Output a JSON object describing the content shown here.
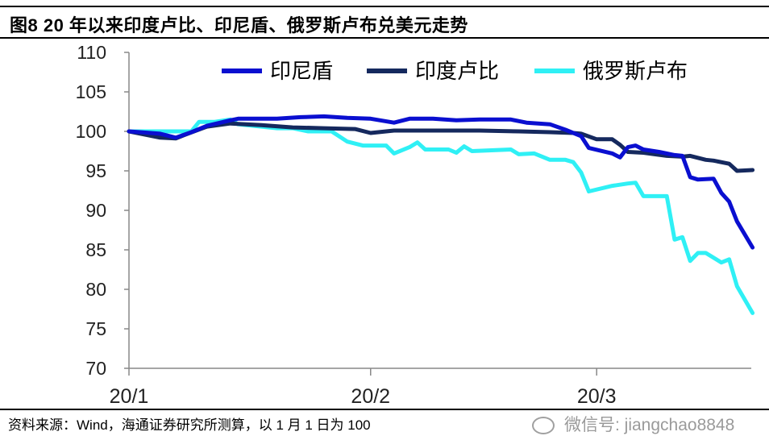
{
  "title": "图8  20 年以来印度卢比、印尼盾、俄罗斯卢布兑美元走势",
  "footer": "资料来源：Wind，海通证券研究所测算，以 1 月 1 日为 100",
  "watermark": "微信号: jiangchao8848",
  "chart_data": {
    "type": "line",
    "title": "",
    "xlabel": "",
    "ylabel": "",
    "ylim": [
      70,
      110
    ],
    "yticks": [
      70,
      75,
      80,
      85,
      90,
      95,
      100,
      105,
      110
    ],
    "xlim": [
      "2020-01-01",
      "2020-03-21"
    ],
    "xticks": [
      {
        "date": "2020-01-01",
        "label": "20/1"
      },
      {
        "date": "2020-02-01",
        "label": "20/2"
      },
      {
        "date": "2020-03-01",
        "label": "20/3"
      }
    ],
    "grid": false,
    "legend_position": "top",
    "series": [
      {
        "name": "印尼盾",
        "color": "#0a0fd0",
        "points": [
          [
            "2020-01-01",
            100
          ],
          [
            "2020-01-05",
            99.7
          ],
          [
            "2020-01-07",
            99.2
          ],
          [
            "2020-01-09",
            99.9
          ],
          [
            "2020-01-11",
            100.7
          ],
          [
            "2020-01-14",
            101.4
          ],
          [
            "2020-01-15",
            101.6
          ],
          [
            "2020-01-20",
            101.6
          ],
          [
            "2020-01-23",
            101.8
          ],
          [
            "2020-01-26",
            101.9
          ],
          [
            "2020-01-29",
            101.7
          ],
          [
            "2020-02-01",
            101.6
          ],
          [
            "2020-02-04",
            101.1
          ],
          [
            "2020-02-06",
            101.6
          ],
          [
            "2020-02-09",
            101.6
          ],
          [
            "2020-02-12",
            101.4
          ],
          [
            "2020-02-15",
            101.5
          ],
          [
            "2020-02-19",
            101.5
          ],
          [
            "2020-02-21",
            101.1
          ],
          [
            "2020-02-24",
            100.9
          ],
          [
            "2020-02-26",
            100.2
          ],
          [
            "2020-02-28",
            99.4
          ],
          [
            "2020-02-29",
            97.9
          ],
          [
            "2020-03-03",
            97.2
          ],
          [
            "2020-03-04",
            96.7
          ],
          [
            "2020-03-05",
            98.0
          ],
          [
            "2020-03-06",
            98.2
          ],
          [
            "2020-03-07",
            97.7
          ],
          [
            "2020-03-09",
            97.4
          ],
          [
            "2020-03-11",
            97.0
          ],
          [
            "2020-03-12",
            96.9
          ],
          [
            "2020-03-13",
            94.2
          ],
          [
            "2020-03-14",
            93.9
          ],
          [
            "2020-03-16",
            94.0
          ],
          [
            "2020-03-17",
            92.2
          ],
          [
            "2020-03-18",
            91.1
          ],
          [
            "2020-03-19",
            88.6
          ],
          [
            "2020-03-21",
            85.3
          ]
        ]
      },
      {
        "name": "印度卢比",
        "color": "#15295e",
        "points": [
          [
            "2020-01-01",
            100
          ],
          [
            "2020-01-05",
            99.2
          ],
          [
            "2020-01-07",
            99.1
          ],
          [
            "2020-01-08",
            99.5
          ],
          [
            "2020-01-11",
            100.6
          ],
          [
            "2020-01-14",
            101.0
          ],
          [
            "2020-01-18",
            100.8
          ],
          [
            "2020-01-22",
            100.5
          ],
          [
            "2020-01-26",
            100.4
          ],
          [
            "2020-01-30",
            100.3
          ],
          [
            "2020-02-01",
            99.8
          ],
          [
            "2020-02-04",
            100.1
          ],
          [
            "2020-02-07",
            100.1
          ],
          [
            "2020-02-11",
            100.1
          ],
          [
            "2020-02-15",
            100.1
          ],
          [
            "2020-02-20",
            100.0
          ],
          [
            "2020-02-24",
            99.9
          ],
          [
            "2020-02-27",
            99.8
          ],
          [
            "2020-02-28",
            99.7
          ],
          [
            "2020-03-01",
            99.0
          ],
          [
            "2020-03-03",
            99.0
          ],
          [
            "2020-03-04",
            98.3
          ],
          [
            "2020-03-05",
            97.4
          ],
          [
            "2020-03-07",
            97.3
          ],
          [
            "2020-03-10",
            96.9
          ],
          [
            "2020-03-12",
            96.8
          ],
          [
            "2020-03-13",
            96.9
          ],
          [
            "2020-03-15",
            96.4
          ],
          [
            "2020-03-16",
            96.3
          ],
          [
            "2020-03-18",
            95.9
          ],
          [
            "2020-03-19",
            95.0
          ],
          [
            "2020-03-21",
            95.1
          ]
        ]
      },
      {
        "name": "俄罗斯卢布",
        "color": "#2ff0f5",
        "points": [
          [
            "2020-01-01",
            100
          ],
          [
            "2020-01-05",
            100
          ],
          [
            "2020-01-09",
            100
          ],
          [
            "2020-01-10",
            101.2
          ],
          [
            "2020-01-12",
            101.2
          ],
          [
            "2020-01-14",
            101.5
          ],
          [
            "2020-01-15",
            100.9
          ],
          [
            "2020-01-20",
            100.4
          ],
          [
            "2020-01-22",
            100.4
          ],
          [
            "2020-01-24",
            100.0
          ],
          [
            "2020-01-27",
            100.0
          ],
          [
            "2020-01-29",
            98.7
          ],
          [
            "2020-01-31",
            98.2
          ],
          [
            "2020-02-03",
            98.2
          ],
          [
            "2020-02-04",
            97.2
          ],
          [
            "2020-02-06",
            98.0
          ],
          [
            "2020-02-07",
            98.6
          ],
          [
            "2020-02-08",
            97.7
          ],
          [
            "2020-02-11",
            97.7
          ],
          [
            "2020-02-12",
            97.3
          ],
          [
            "2020-02-13",
            98.1
          ],
          [
            "2020-02-14",
            97.5
          ],
          [
            "2020-02-19",
            97.7
          ],
          [
            "2020-02-20",
            97.1
          ],
          [
            "2020-02-22",
            97.2
          ],
          [
            "2020-02-24",
            96.4
          ],
          [
            "2020-02-26",
            96.4
          ],
          [
            "2020-02-27",
            96.1
          ],
          [
            "2020-02-28",
            94.8
          ],
          [
            "2020-02-29",
            92.4
          ],
          [
            "2020-03-03",
            93.1
          ],
          [
            "2020-03-05",
            93.4
          ],
          [
            "2020-03-06",
            93.5
          ],
          [
            "2020-03-07",
            91.8
          ],
          [
            "2020-03-10",
            91.8
          ],
          [
            "2020-03-11",
            86.3
          ],
          [
            "2020-03-12",
            86.6
          ],
          [
            "2020-03-13",
            83.6
          ],
          [
            "2020-03-14",
            84.6
          ],
          [
            "2020-03-15",
            84.6
          ],
          [
            "2020-03-17",
            83.4
          ],
          [
            "2020-03-18",
            83.8
          ],
          [
            "2020-03-19",
            80.4
          ],
          [
            "2020-03-21",
            77.0
          ]
        ]
      }
    ]
  }
}
